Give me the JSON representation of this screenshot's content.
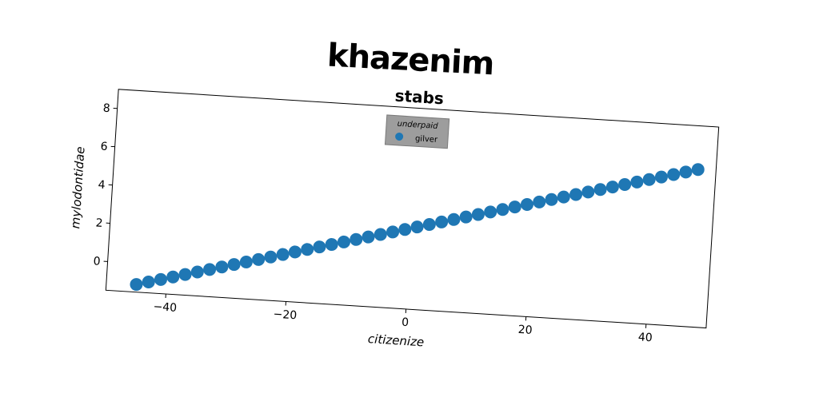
{
  "chart_data": {
    "type": "scatter",
    "suptitle": "khazenim",
    "title": "stabs",
    "xlabel": "citizenize",
    "ylabel": "mylodontidae",
    "xlim": [
      -50,
      50
    ],
    "ylim": [
      -1.5,
      9
    ],
    "xticks": [
      -40,
      -20,
      0,
      20,
      40
    ],
    "xtick_labels": [
      "−40",
      "−20",
      "0",
      "20",
      "40"
    ],
    "yticks": [
      0,
      2,
      4,
      6,
      8
    ],
    "ytick_labels": [
      "0",
      "2",
      "4",
      "6",
      "8"
    ],
    "legend": {
      "title": "underpaid",
      "placement": "upper center"
    },
    "series": [
      {
        "name": "gilver",
        "color": "#1f77b4",
        "x": [
          -45,
          -43,
          -41,
          -39,
          -37,
          -35,
          -33,
          -31,
          -29,
          -27,
          -25,
          -23,
          -21,
          -19,
          -17,
          -15,
          -13,
          -11,
          -9,
          -7,
          -5,
          -3,
          -1,
          1,
          3,
          5,
          7,
          9,
          11,
          13,
          15,
          17,
          19,
          21,
          23,
          25,
          27,
          29,
          31,
          33,
          35,
          37,
          39,
          41,
          43,
          45,
          47
        ],
        "y": [
          -1.1,
          -0.93,
          -0.76,
          -0.59,
          -0.42,
          -0.25,
          -0.08,
          0.09,
          0.26,
          0.43,
          0.6,
          0.77,
          0.94,
          1.11,
          1.28,
          1.45,
          1.62,
          1.79,
          1.96,
          2.13,
          2.3,
          2.47,
          2.64,
          2.81,
          2.98,
          3.15,
          3.32,
          3.49,
          3.66,
          3.83,
          4.0,
          4.17,
          4.34,
          4.51,
          4.68,
          4.85,
          5.02,
          5.19,
          5.36,
          5.53,
          5.7,
          5.87,
          6.04,
          6.21,
          6.38,
          6.55,
          6.72
        ]
      }
    ]
  }
}
